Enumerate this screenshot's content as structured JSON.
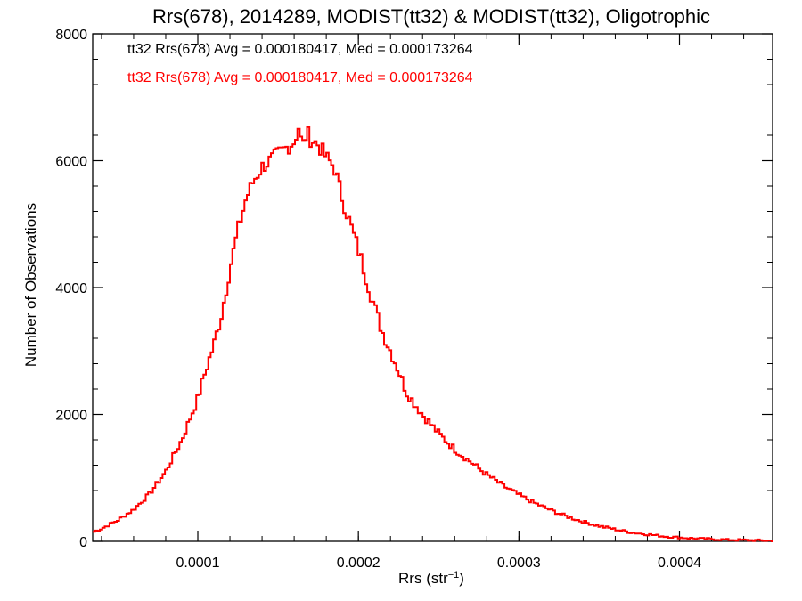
{
  "chart_data": {
    "type": "histogram",
    "title": "Rrs(678), 2014289, MODIST(tt32) & MODIST(tt32), Oligotrophic",
    "xlabel_base": "Rrs (str",
    "xlabel_sup": "−1",
    "xlabel_end": ")",
    "ylabel": "Number of Observations",
    "xlim": [
      3.45e-05,
      0.000458
    ],
    "ylim": [
      0,
      8000
    ],
    "x_ticks": [
      0.0001,
      0.0002,
      0.0003,
      0.0004
    ],
    "x_tick_labels": [
      "0.0001",
      "0.0002",
      "0.0003",
      "0.0004"
    ],
    "y_ticks": [
      0,
      2000,
      4000,
      6000,
      8000
    ],
    "y_tick_labels": [
      "0",
      "2000",
      "4000",
      "6000",
      "8000"
    ],
    "annotations": [
      {
        "text": "tt32 Rrs(678) Avg = 0.000180417, Med = 0.000173264",
        "color": "#000000"
      },
      {
        "text": "tt32 Rrs(678) Avg = 0.000180417, Med = 0.000173264",
        "color": "#ff0000"
      }
    ],
    "series": [
      {
        "color": "#ff0000",
        "x": [
          3.5e-05,
          4e-05,
          5e-05,
          6e-05,
          7e-05,
          8e-05,
          9e-05,
          0.0001,
          0.000105,
          0.00011,
          0.000115,
          0.00012,
          0.000125,
          0.00013,
          0.000135,
          0.00014,
          0.000145,
          0.00015,
          0.000155,
          0.00016,
          0.000163,
          0.000165,
          0.000168,
          0.00017,
          0.000175,
          0.00018,
          0.000185,
          0.00019,
          0.000195,
          0.0002,
          0.000205,
          0.00021,
          0.000215,
          0.00022,
          0.000225,
          0.00023,
          0.00024,
          0.00025,
          0.00026,
          0.00027,
          0.00028,
          0.00029,
          0.0003,
          0.00031,
          0.00032,
          0.00033,
          0.00034,
          0.00035,
          0.00036,
          0.00037,
          0.00038,
          0.00039,
          0.0004,
          0.00041,
          0.00042,
          0.00043,
          0.00044,
          0.00045,
          0.000457
        ],
        "y": [
          150,
          200,
          330,
          500,
          750,
          1100,
          1600,
          2250,
          2700,
          3100,
          3600,
          4300,
          4900,
          5400,
          5700,
          5900,
          6000,
          6100,
          6200,
          6300,
          6550,
          6200,
          6450,
          6350,
          6250,
          6050,
          5900,
          5400,
          5000,
          4600,
          4150,
          3700,
          3300,
          3000,
          2700,
          2350,
          2000,
          1700,
          1450,
          1250,
          1050,
          880,
          730,
          600,
          490,
          390,
          310,
          240,
          190,
          140,
          110,
          80,
          60,
          45,
          35,
          25,
          20,
          15,
          10
        ]
      }
    ]
  }
}
